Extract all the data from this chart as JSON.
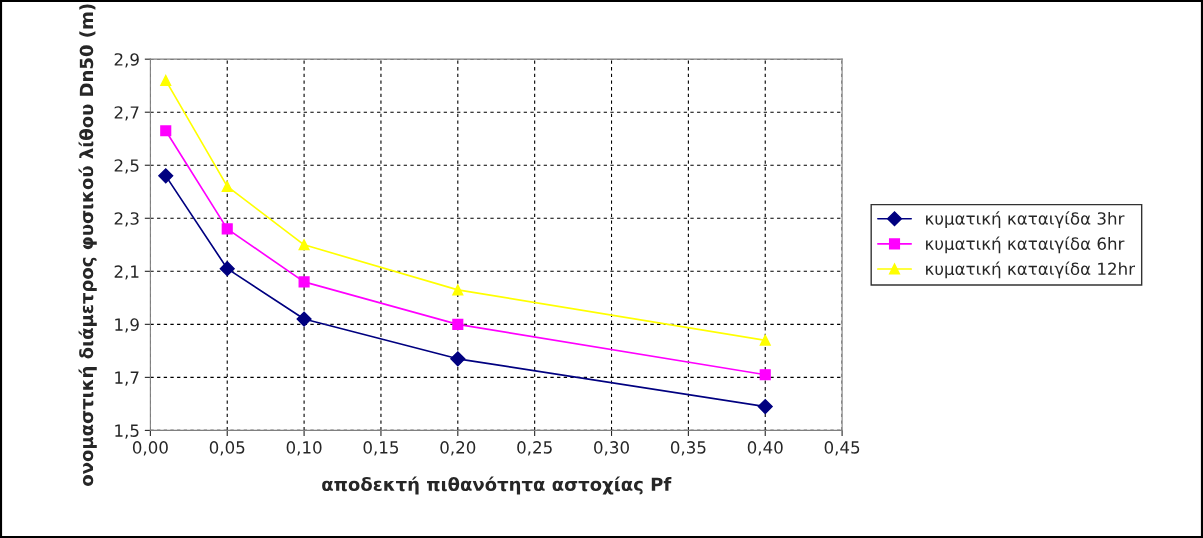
{
  "chart_data": {
    "type": "line",
    "xlabel": "αποδεκτή πιθανότητα αστοχίας Pf",
    "ylabel": "ονομαστική διάμετρος φυσικού λίθου Dn50 (m)",
    "x": [
      0.01,
      0.05,
      0.1,
      0.2,
      0.4
    ],
    "series": [
      {
        "name": "κυματική καταιγίδα 3hr",
        "color": "#000080",
        "marker": "diamond",
        "values": [
          2.46,
          2.11,
          1.92,
          1.77,
          1.59
        ]
      },
      {
        "name": "κυματική καταιγίδα 6hr",
        "color": "#ff00ff",
        "marker": "square",
        "values": [
          2.63,
          2.26,
          2.06,
          1.9,
          1.71
        ]
      },
      {
        "name": "κυματική καταιγίδα 12hr",
        "color": "#ffff00",
        "marker": "triangle",
        "values": [
          2.82,
          2.42,
          2.2,
          2.03,
          1.84
        ]
      }
    ],
    "xlim": [
      0,
      0.45
    ],
    "ylim": [
      1.5,
      2.9
    ],
    "xticks": [
      {
        "value": 0,
        "label": "0,00"
      },
      {
        "value": 0.05,
        "label": "0,05"
      },
      {
        "value": 0.1,
        "label": "0,10"
      },
      {
        "value": 0.15,
        "label": "0,15"
      },
      {
        "value": 0.2,
        "label": "0,20"
      },
      {
        "value": 0.25,
        "label": "0,25"
      },
      {
        "value": 0.3,
        "label": "0,30"
      },
      {
        "value": 0.35,
        "label": "0,35"
      },
      {
        "value": 0.4,
        "label": "0,40"
      },
      {
        "value": 0.45,
        "label": "0,45"
      }
    ],
    "yticks": [
      {
        "value": 1.5,
        "label": "1,5"
      },
      {
        "value": 1.7,
        "label": "1,7"
      },
      {
        "value": 1.9,
        "label": "1,9"
      },
      {
        "value": 2.1,
        "label": "2,1"
      },
      {
        "value": 2.3,
        "label": "2,3"
      },
      {
        "value": 2.5,
        "label": "2,5"
      },
      {
        "value": 2.7,
        "label": "2,7"
      },
      {
        "value": 2.9,
        "label": "2,9"
      }
    ],
    "grid": true,
    "legend": "right"
  }
}
